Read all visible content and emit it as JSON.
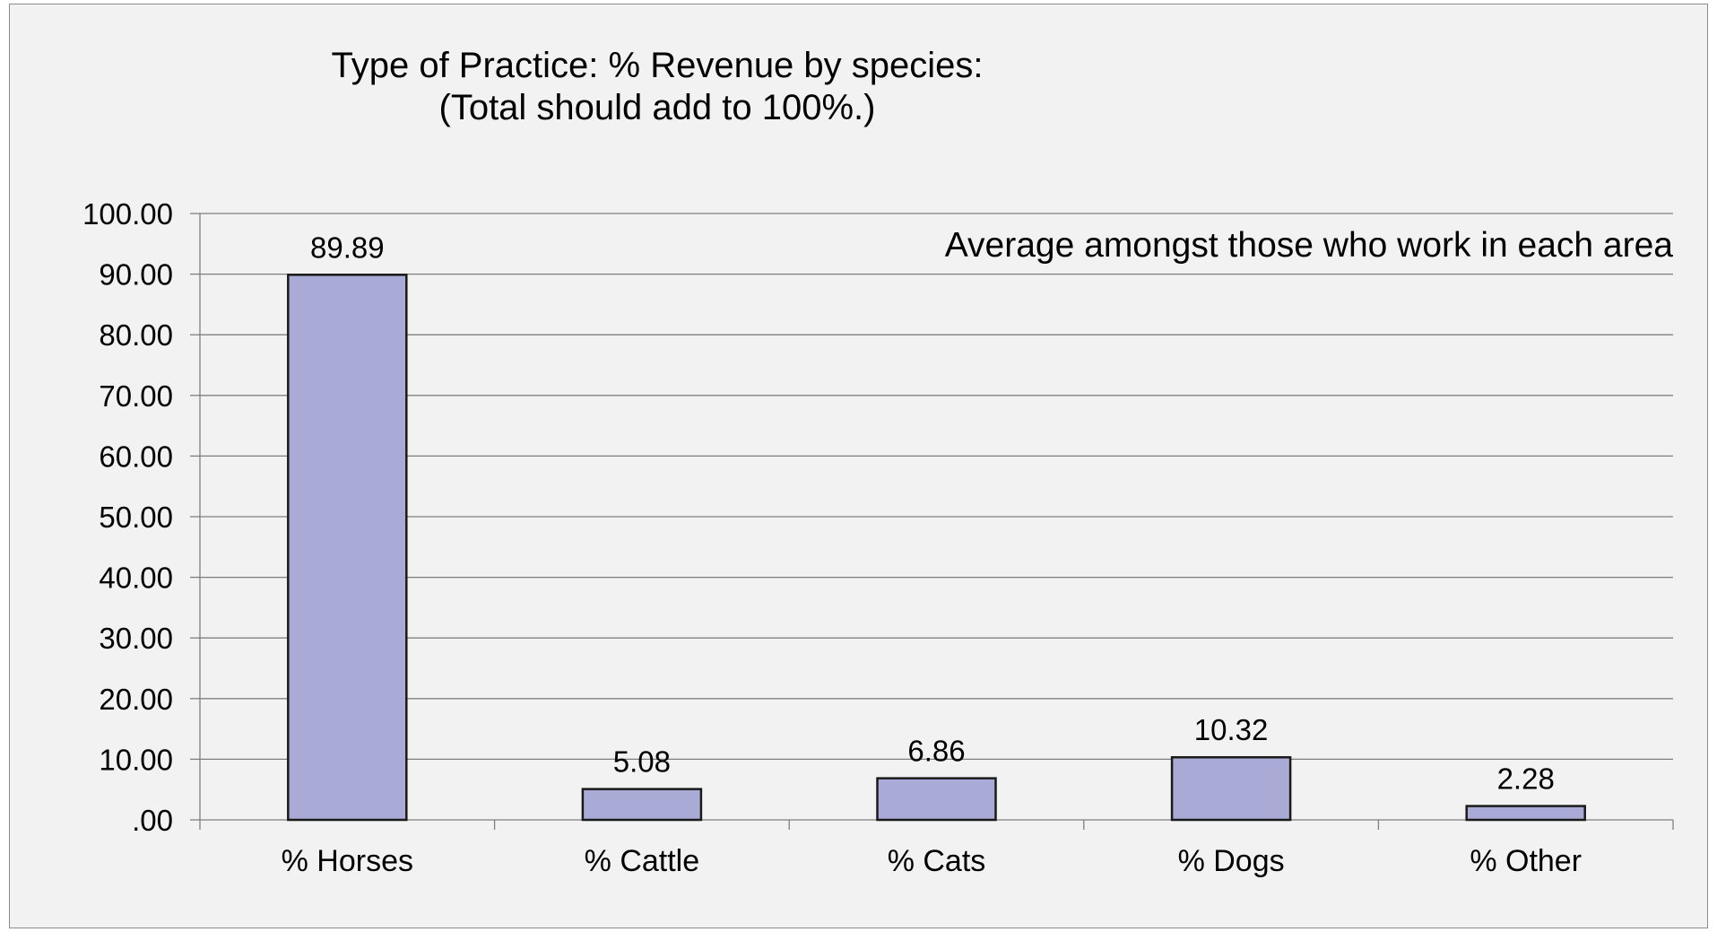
{
  "chart_data": {
    "type": "bar",
    "title": "Type of Practice: % Revenue by species:",
    "subtitle": "(Total should add to 100%.)",
    "annotation": "Average amongst those who work in each area",
    "categories": [
      "% Horses",
      "% Cattle",
      "% Cats",
      "% Dogs",
      "% Other"
    ],
    "values": [
      89.89,
      5.08,
      6.86,
      10.32,
      2.28
    ],
    "data_labels": [
      "89.89",
      "5.08",
      "6.86",
      "10.32",
      "2.28"
    ],
    "y_ticks": [
      ".00",
      "10.00",
      "20.00",
      "30.00",
      "40.00",
      "50.00",
      "60.00",
      "70.00",
      "80.00",
      "90.00",
      "100.00"
    ],
    "ylim": [
      0,
      100
    ],
    "xlabel": "",
    "ylabel": "",
    "grid": true,
    "legend": "none",
    "colors": {
      "bar_fill": "#aaaad6",
      "bar_stroke": "#1a1a1a",
      "gridline": "#7f7f7f",
      "background": "#f2f2f2"
    }
  }
}
